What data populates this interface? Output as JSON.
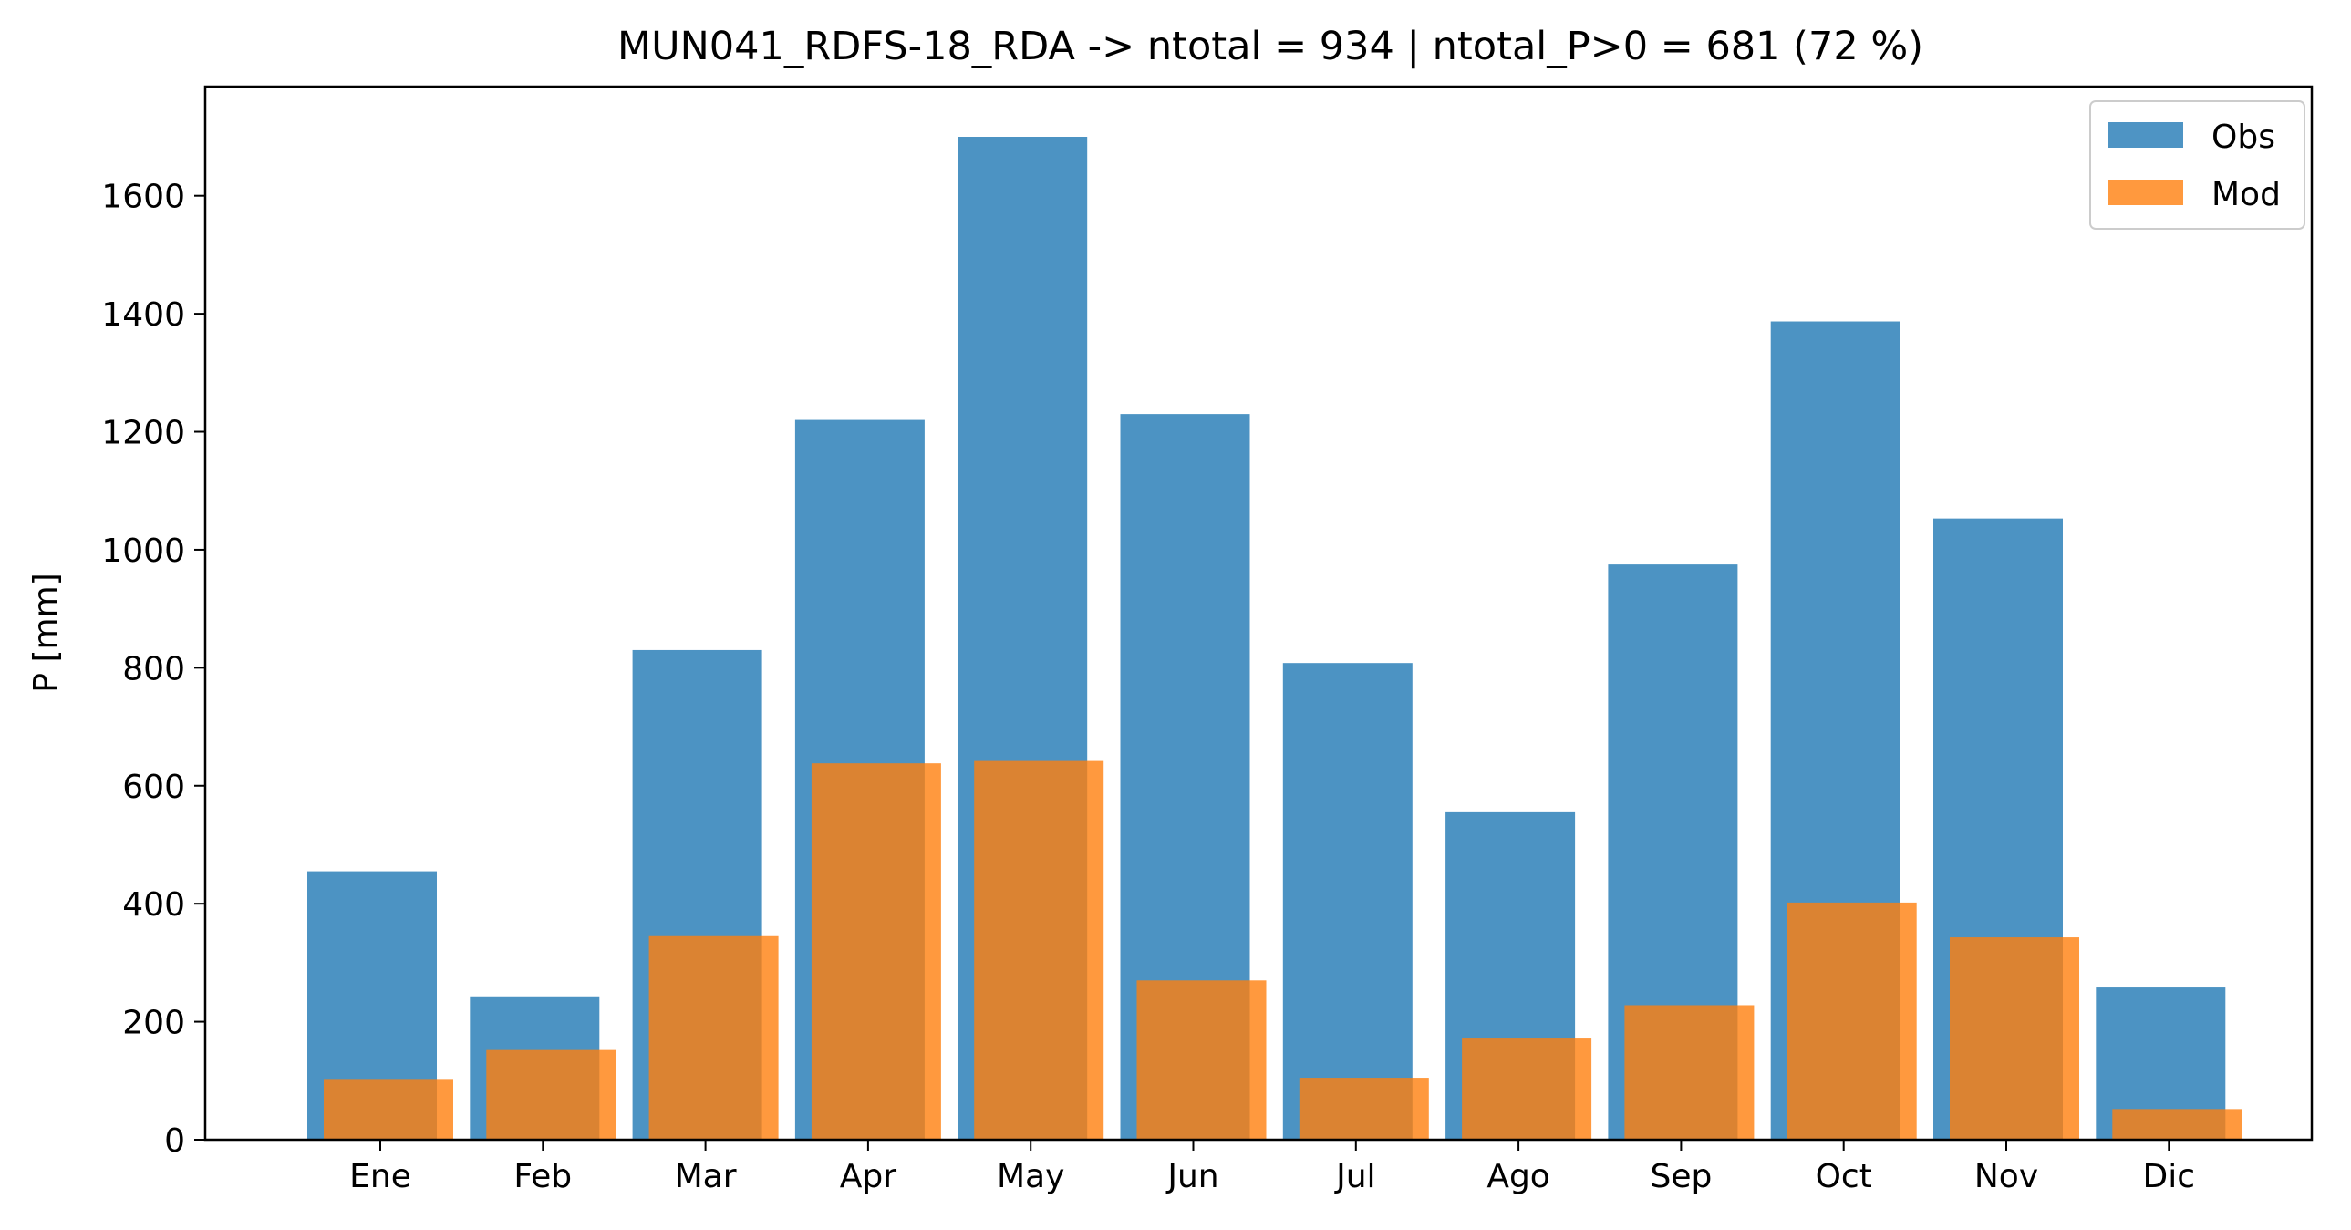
{
  "chart_data": {
    "type": "bar",
    "title": "MUN041_RDFS-18_RDA -> ntotal = 934 | ntotal_P>0 = 681 (72 %)",
    "xlabel": "",
    "ylabel": "P [mm]",
    "categories": [
      "Ene",
      "Feb",
      "Mar",
      "Apr",
      "May",
      "Jun",
      "Jul",
      "Ago",
      "Sep",
      "Oct",
      "Nov",
      "Dic"
    ],
    "series": [
      {
        "name": "Obs",
        "color": "#4c93c3",
        "values": [
          455,
          243,
          830,
          1220,
          1700,
          1230,
          808,
          555,
          975,
          1387,
          1053,
          258
        ]
      },
      {
        "name": "Mod",
        "color": "#ff7f0e",
        "values": [
          103,
          152,
          345,
          638,
          642,
          270,
          105,
          173,
          228,
          402,
          343,
          52
        ]
      }
    ],
    "ylim": [
      0,
      1785
    ],
    "yticks": [
      0,
      200,
      400,
      600,
      800,
      1000,
      1200,
      1400,
      1600
    ],
    "legend_position": "top-right",
    "grid": false
  }
}
